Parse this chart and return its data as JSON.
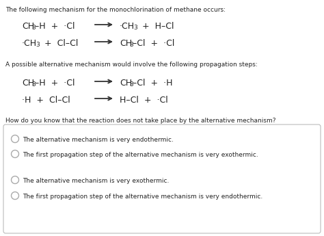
{
  "bg_color": "#ffffff",
  "border_color": "#bbbbbb",
  "text_color": "#222222",
  "title_line": "The following mechanism for the monochlorination of methane occurs:",
  "alt_title": "A possible alternative mechanism would involve the following propagation steps:",
  "question": "How do you know that the reaction does not take place by the alternative mechanism?",
  "options": [
    "The alternative mechanism is very endothermic.",
    "The first propagation step of the alternative mechanism is very exothermic.",
    "The alternative mechanism is very exothermic.",
    "The first propagation step of the alternative mechanism is very endothermic."
  ],
  "figsize": [
    4.74,
    3.45
  ],
  "dpi": 100
}
